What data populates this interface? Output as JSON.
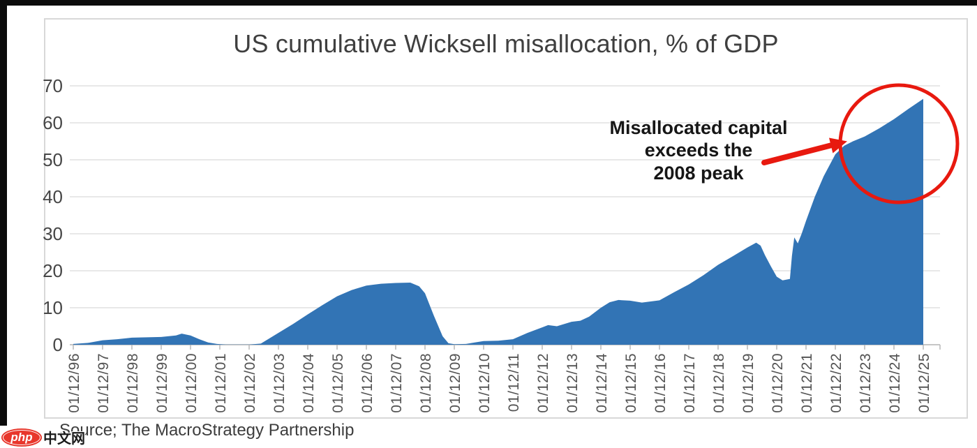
{
  "chart_data": {
    "type": "area",
    "title": "US cumulative Wicksell misallocation, % of GDP",
    "source": "Source; The MacroStrategy Partnership",
    "x_unit": "year index (0 = 01/12/96, 29 = 01/12/25)",
    "x_tick_labels": [
      "01/12/96",
      "01/12/97",
      "01/12/98",
      "01/12/99",
      "01/12/00",
      "01/12/01",
      "01/12/02",
      "01/12/03",
      "01/12/04",
      "01/12/05",
      "01/12/06",
      "01/12/07",
      "01/12/08",
      "01/12/09",
      "01/12/10",
      "01/12/11",
      "01/12/12",
      "01/12/13",
      "01/12/14",
      "01/12/15",
      "01/12/16",
      "01/12/17",
      "01/12/18",
      "01/12/19",
      "01/12/20",
      "01/12/21",
      "01/12/22",
      "01/12/23",
      "01/12/24",
      "01/12/25"
    ],
    "ylim": [
      0,
      70
    ],
    "y_ticks": [
      0,
      10,
      20,
      30,
      40,
      50,
      60,
      70
    ],
    "grid": "horizontal",
    "legend": "none",
    "series": [
      {
        "name": "US cumulative Wicksell misallocation, % of GDP",
        "color": "#3274b5",
        "points": [
          [
            0,
            0.2
          ],
          [
            0.5,
            0.5
          ],
          [
            1,
            1.2
          ],
          [
            1.5,
            1.5
          ],
          [
            2,
            1.9
          ],
          [
            2.5,
            2.0
          ],
          [
            3,
            2.1
          ],
          [
            3.5,
            2.5
          ],
          [
            3.7,
            3.0
          ],
          [
            4,
            2.5
          ],
          [
            4.3,
            1.5
          ],
          [
            4.6,
            0.6
          ],
          [
            4.9,
            0.2
          ],
          [
            5.2,
            0.05
          ],
          [
            6,
            0.05
          ],
          [
            6.4,
            0.3
          ],
          [
            7,
            3.2
          ],
          [
            7.5,
            5.6
          ],
          [
            8,
            8.2
          ],
          [
            8.5,
            10.7
          ],
          [
            9,
            13.1
          ],
          [
            9.5,
            14.8
          ],
          [
            10,
            16.0
          ],
          [
            10.5,
            16.5
          ],
          [
            11,
            16.7
          ],
          [
            11.5,
            16.8
          ],
          [
            11.8,
            15.8
          ],
          [
            12,
            13.9
          ],
          [
            12.3,
            7.9
          ],
          [
            12.6,
            2.3
          ],
          [
            12.8,
            0.4
          ],
          [
            13,
            0.15
          ],
          [
            13.4,
            0.2
          ],
          [
            13.7,
            0.6
          ],
          [
            14,
            1.0
          ],
          [
            14.5,
            1.1
          ],
          [
            15,
            1.5
          ],
          [
            15.5,
            3.2
          ],
          [
            16,
            4.7
          ],
          [
            16.2,
            5.3
          ],
          [
            16.5,
            5.0
          ],
          [
            17,
            6.2
          ],
          [
            17.3,
            6.5
          ],
          [
            17.6,
            7.6
          ],
          [
            18,
            10.0
          ],
          [
            18.3,
            11.5
          ],
          [
            18.6,
            12.1
          ],
          [
            19,
            11.9
          ],
          [
            19.4,
            11.4
          ],
          [
            20,
            12.0
          ],
          [
            20.5,
            14.2
          ],
          [
            21,
            16.3
          ],
          [
            21.5,
            18.8
          ],
          [
            22,
            21.6
          ],
          [
            22.5,
            23.9
          ],
          [
            23,
            26.3
          ],
          [
            23.3,
            27.6
          ],
          [
            23.45,
            26.8
          ],
          [
            23.6,
            24.2
          ],
          [
            23.8,
            21.2
          ],
          [
            24,
            18.4
          ],
          [
            24.2,
            17.4
          ],
          [
            24.45,
            17.8
          ],
          [
            24.52,
            24.0
          ],
          [
            24.6,
            29.0
          ],
          [
            24.72,
            27.4
          ],
          [
            24.85,
            30.0
          ],
          [
            25,
            33.5
          ],
          [
            25.3,
            40.0
          ],
          [
            25.6,
            45.5
          ],
          [
            26,
            51.5
          ],
          [
            26.3,
            53.8
          ],
          [
            26.6,
            55.0
          ],
          [
            27,
            56.3
          ],
          [
            27.5,
            58.5
          ],
          [
            28,
            61.0
          ],
          [
            28.5,
            63.8
          ],
          [
            29,
            66.5
          ]
        ]
      }
    ],
    "annotation": {
      "text": "Misallocated capital\nexceeds the\n2008 peak",
      "arrow_color": "#e8190f",
      "circle_color": "#e8190f"
    }
  },
  "watermark": {
    "badge": "php",
    "text": "中文网"
  }
}
